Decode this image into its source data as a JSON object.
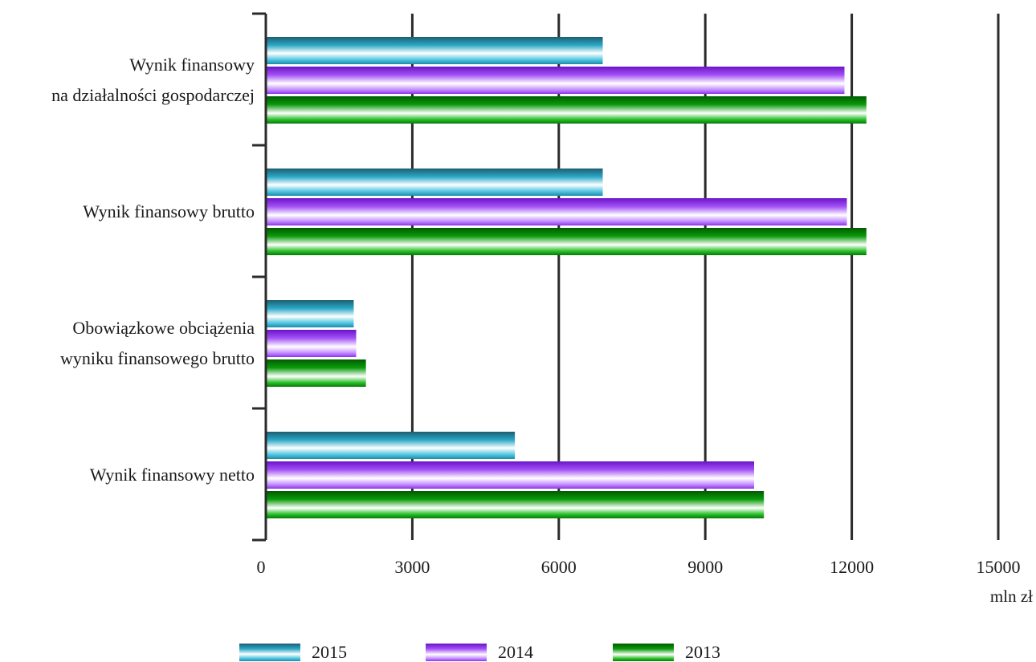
{
  "chart_data": {
    "type": "bar",
    "orientation": "horizontal",
    "categories": [
      [
        "Wynik finansowy",
        "na działalności gospodarczej"
      ],
      [
        "Wynik finansowy brutto"
      ],
      [
        "Obowiązkowe obciążenia",
        "wyniku finansowego brutto"
      ],
      [
        "Wynik finansowy netto"
      ]
    ],
    "series": [
      {
        "name": "2015",
        "color": "#29a6c4",
        "values": [
          6900,
          6900,
          1800,
          5100
        ]
      },
      {
        "name": "2014",
        "color": "#9b45f0",
        "values": [
          11850,
          11900,
          1850,
          10000
        ]
      },
      {
        "name": "2013",
        "color": "#0a8a0a",
        "values": [
          12300,
          12300,
          2050,
          10200
        ]
      }
    ],
    "xlim": [
      0,
      15000
    ],
    "xticks": [
      "0",
      "3000",
      "6000",
      "9000",
      "12000",
      "15000"
    ],
    "xunit": "mln zł",
    "grid": "vertical",
    "legend_position": "bottom"
  }
}
